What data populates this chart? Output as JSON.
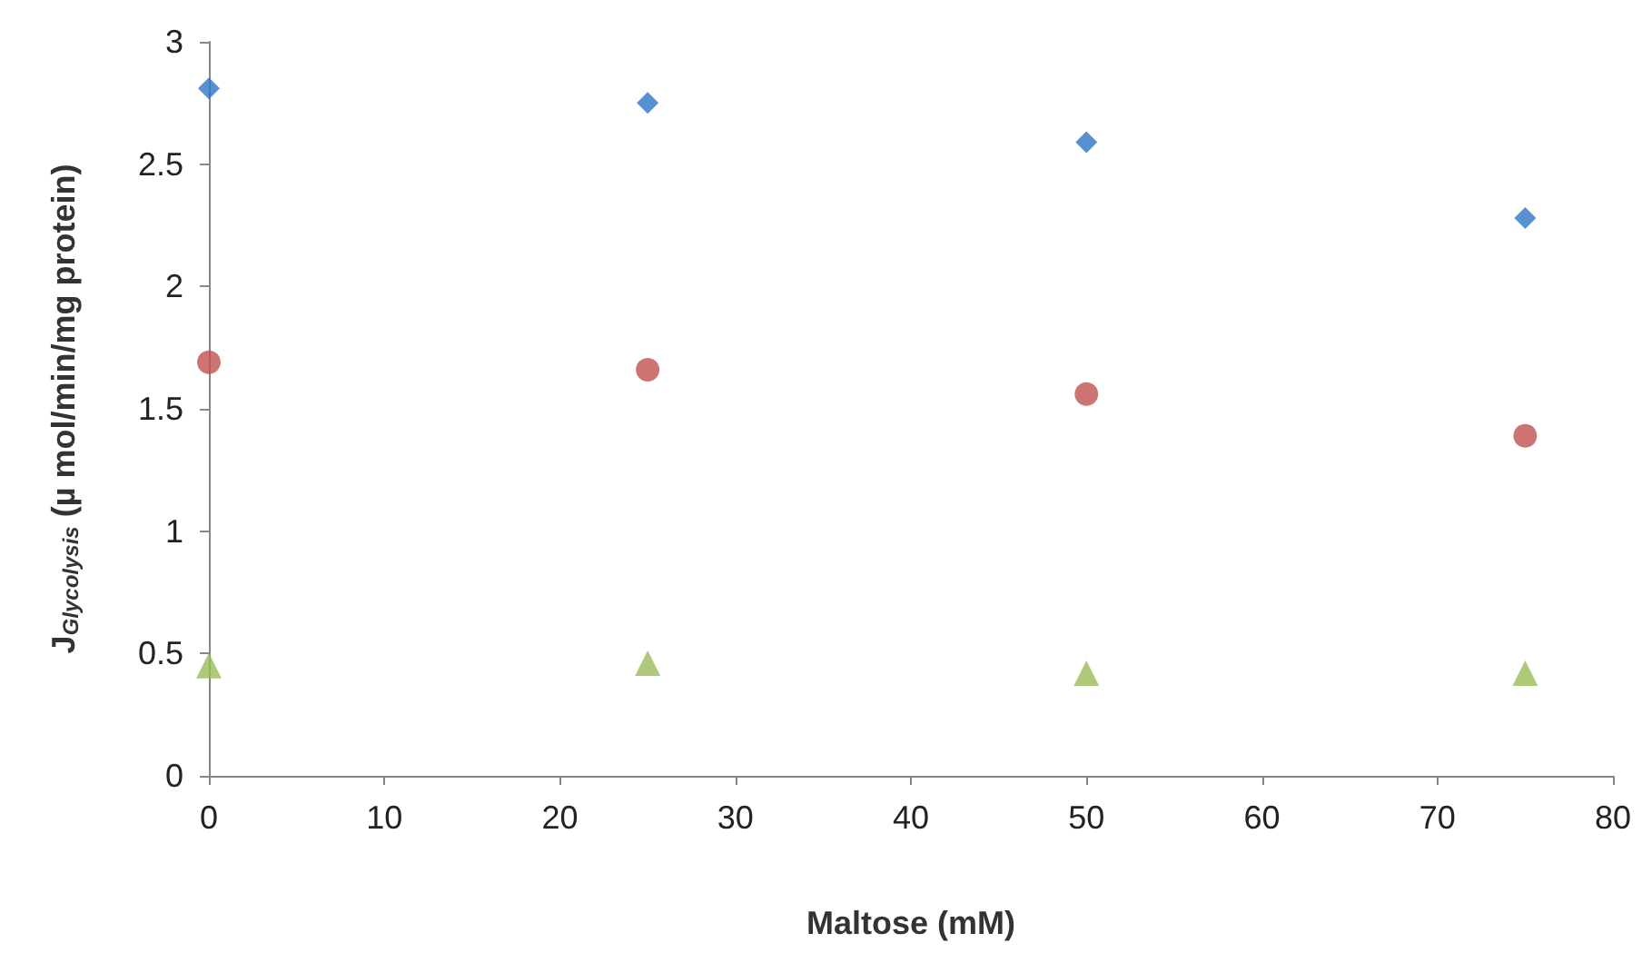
{
  "chart_data": {
    "type": "scatter",
    "xlabel": "Maltose (mM)",
    "ylabel": "J$_{Glycolysis}$ (µ mol/min/mg protein)",
    "x": [
      0,
      25,
      50,
      75
    ],
    "series": [
      {
        "color": "#2e75c6",
        "marker": "diamond",
        "values": [
          2.81,
          2.75,
          2.59,
          2.28
        ]
      },
      {
        "color": "#c0504d",
        "marker": "circle",
        "values": [
          1.69,
          1.66,
          1.56,
          1.39
        ]
      },
      {
        "color": "#9bbb59",
        "marker": "triangle",
        "values": [
          0.45,
          0.46,
          0.42,
          0.42
        ]
      }
    ],
    "xlim": [
      0,
      80
    ],
    "xticks": [
      0,
      10,
      20,
      30,
      40,
      50,
      60,
      70,
      80
    ],
    "ylim": [
      0,
      3
    ],
    "yticks": [
      0,
      0.5,
      1,
      1.5,
      2,
      2.5,
      3
    ]
  }
}
